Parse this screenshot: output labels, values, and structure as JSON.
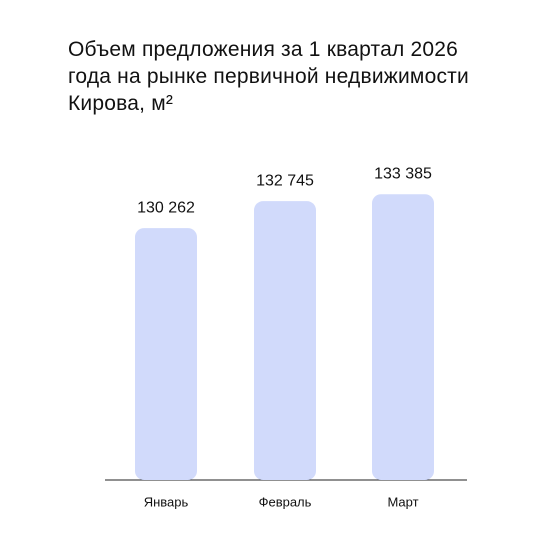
{
  "chart_data": {
    "type": "bar",
    "title": "Объем предложения за 1 квартал 2026 года на рынке первичной недвижимости Кирова, м²",
    "categories": [
      "Январь",
      "Февраль",
      "Март"
    ],
    "values": [
      130262,
      132745,
      133385
    ],
    "value_labels": [
      "130 262",
      "132 745",
      "133 385"
    ],
    "color": "#d1dafb",
    "ylim": [
      107000,
      134700
    ]
  }
}
